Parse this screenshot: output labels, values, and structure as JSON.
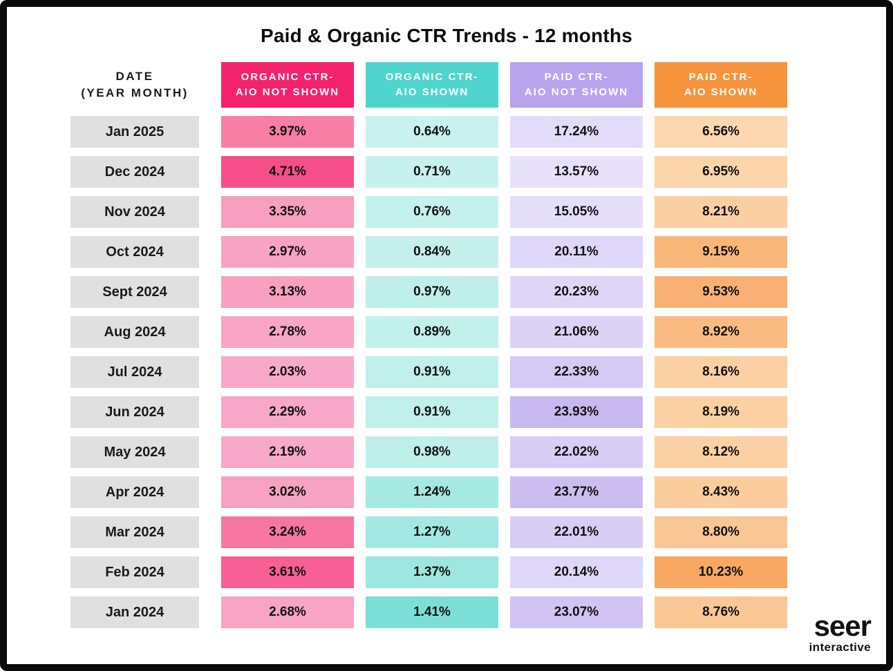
{
  "title": "Paid & Organic CTR Trends - 12 months",
  "colors": {
    "frame": "#0a0a0a",
    "background": "#ffffff",
    "date_cell_bg": "#e0e0e0",
    "header_text": "#ffffff",
    "body_text": "#1a1a1a"
  },
  "table": {
    "date_header_line1": "DATE",
    "date_header_line2": "(YEAR MONTH)",
    "columns": [
      {
        "label_line1": "ORGANIC CTR-",
        "label_line2": "AIO NOT SHOWN",
        "header_color": "#f4216b"
      },
      {
        "label_line1": "ORGANIC CTR-",
        "label_line2": "AIO SHOWN",
        "header_color": "#4fd5cd"
      },
      {
        "label_line1": "PAID CTR-",
        "label_line2": "AIO NOT SHOWN",
        "header_color": "#b7a4ed"
      },
      {
        "label_line1": "PAID CTR-",
        "label_line2": "AIO SHOWN",
        "header_color": "#f7933d"
      }
    ],
    "rows": [
      {
        "date": "Jan 2025",
        "cells": [
          {
            "value": "3.97%",
            "bg": "#f87ea6"
          },
          {
            "value": "0.64%",
            "bg": "#c9f2ee"
          },
          {
            "value": "17.24%",
            "bg": "#e3dcf8"
          },
          {
            "value": "6.56%",
            "bg": "#fcd7af"
          }
        ]
      },
      {
        "date": "Dec 2024",
        "cells": [
          {
            "value": "4.71%",
            "bg": "#f64e88"
          },
          {
            "value": "0.71%",
            "bg": "#c7f1ed"
          },
          {
            "value": "13.57%",
            "bg": "#e6e0f9"
          },
          {
            "value": "6.95%",
            "bg": "#fcd5ab"
          }
        ]
      },
      {
        "date": "Nov 2024",
        "cells": [
          {
            "value": "3.35%",
            "bg": "#f89ebf"
          },
          {
            "value": "0.76%",
            "bg": "#c5f1ec"
          },
          {
            "value": "15.05%",
            "bg": "#e4def9"
          },
          {
            "value": "8.21%",
            "bg": "#fbcfa2"
          }
        ]
      },
      {
        "date": "Oct 2024",
        "cells": [
          {
            "value": "2.97%",
            "bg": "#f8a3c4"
          },
          {
            "value": "0.84%",
            "bg": "#c3f0eb"
          },
          {
            "value": "20.11%",
            "bg": "#dfd7f7"
          },
          {
            "value": "9.15%",
            "bg": "#f9b679"
          }
        ]
      },
      {
        "date": "Sept 2024",
        "cells": [
          {
            "value": "3.13%",
            "bg": "#f8a0c0"
          },
          {
            "value": "0.97%",
            "bg": "#bfefea"
          },
          {
            "value": "20.23%",
            "bg": "#dfd6f7"
          },
          {
            "value": "9.53%",
            "bg": "#f9b173"
          }
        ]
      },
      {
        "date": "Aug 2024",
        "cells": [
          {
            "value": "2.78%",
            "bg": "#f8a5c6"
          },
          {
            "value": "0.89%",
            "bg": "#c2f0ea"
          },
          {
            "value": "21.06%",
            "bg": "#dcd2f6"
          },
          {
            "value": "8.92%",
            "bg": "#fabb82"
          }
        ]
      },
      {
        "date": "Jul 2024",
        "cells": [
          {
            "value": "2.03%",
            "bg": "#f8a9ca"
          },
          {
            "value": "0.91%",
            "bg": "#c1efea"
          },
          {
            "value": "22.33%",
            "bg": "#d5caf4"
          },
          {
            "value": "8.16%",
            "bg": "#fbd0a3"
          }
        ]
      },
      {
        "date": "Jun 2024",
        "cells": [
          {
            "value": "2.29%",
            "bg": "#f8a7c8"
          },
          {
            "value": "0.91%",
            "bg": "#c1efea"
          },
          {
            "value": "23.93%",
            "bg": "#c8b8f0"
          },
          {
            "value": "8.19%",
            "bg": "#fbd0a2"
          }
        ]
      },
      {
        "date": "May 2024",
        "cells": [
          {
            "value": "2.19%",
            "bg": "#f8a8c9"
          },
          {
            "value": "0.98%",
            "bg": "#beefe9"
          },
          {
            "value": "22.02%",
            "bg": "#d7cdf5"
          },
          {
            "value": "8.12%",
            "bg": "#fbd1a4"
          }
        ]
      },
      {
        "date": "Apr 2024",
        "cells": [
          {
            "value": "3.02%",
            "bg": "#f8a2c3"
          },
          {
            "value": "1.24%",
            "bg": "#a6e9e3"
          },
          {
            "value": "23.77%",
            "bg": "#ccbdf1"
          },
          {
            "value": "8.43%",
            "bg": "#fbcd9d"
          }
        ]
      },
      {
        "date": "Mar 2024",
        "cells": [
          {
            "value": "3.24%",
            "bg": "#f877a2"
          },
          {
            "value": "1.27%",
            "bg": "#a3e8e2"
          },
          {
            "value": "22.01%",
            "bg": "#d7cdf5"
          },
          {
            "value": "8.80%",
            "bg": "#fac694"
          }
        ]
      },
      {
        "date": "Feb 2024",
        "cells": [
          {
            "value": "3.61%",
            "bg": "#f75f95"
          },
          {
            "value": "1.37%",
            "bg": "#9de7e0"
          },
          {
            "value": "20.14%",
            "bg": "#dfd7f7"
          },
          {
            "value": "10.23%",
            "bg": "#f8a860"
          }
        ]
      },
      {
        "date": "Jan 2024",
        "cells": [
          {
            "value": "2.68%",
            "bg": "#f8a4c5"
          },
          {
            "value": "1.41%",
            "bg": "#7bdfd7"
          },
          {
            "value": "23.07%",
            "bg": "#d1c3f3"
          },
          {
            "value": "8.76%",
            "bg": "#fac795"
          }
        ]
      }
    ]
  },
  "logo": {
    "main": "seer",
    "sub": "interactive"
  },
  "chart_data": {
    "type": "heatmap",
    "title": "Paid & Organic CTR Trends - 12 months",
    "unit": "%",
    "categories": [
      "Jan 2025",
      "Dec 2024",
      "Nov 2024",
      "Oct 2024",
      "Sept 2024",
      "Aug 2024",
      "Jul 2024",
      "Jun 2024",
      "May 2024",
      "Apr 2024",
      "Mar 2024",
      "Feb 2024",
      "Jan 2024"
    ],
    "series": [
      {
        "name": "Organic CTR- AIO Not Shown",
        "values": [
          3.97,
          4.71,
          3.35,
          2.97,
          3.13,
          2.78,
          2.03,
          2.29,
          2.19,
          3.02,
          3.24,
          3.61,
          2.68
        ]
      },
      {
        "name": "Organic CTR- AIO Shown",
        "values": [
          0.64,
          0.71,
          0.76,
          0.84,
          0.97,
          0.89,
          0.91,
          0.91,
          0.98,
          1.24,
          1.27,
          1.37,
          1.41
        ]
      },
      {
        "name": "Paid CTR- AIO Not Shown",
        "values": [
          17.24,
          13.57,
          15.05,
          20.11,
          20.23,
          21.06,
          22.33,
          23.93,
          22.02,
          23.77,
          22.01,
          20.14,
          23.07
        ]
      },
      {
        "name": "Paid CTR- AIO Shown",
        "values": [
          6.56,
          6.95,
          8.21,
          9.15,
          9.53,
          8.92,
          8.16,
          8.19,
          8.12,
          8.43,
          8.8,
          10.23,
          8.76
        ]
      }
    ],
    "layout": {
      "shading": "darker cell = higher value within column",
      "legend": "column headers",
      "grid": false
    }
  }
}
